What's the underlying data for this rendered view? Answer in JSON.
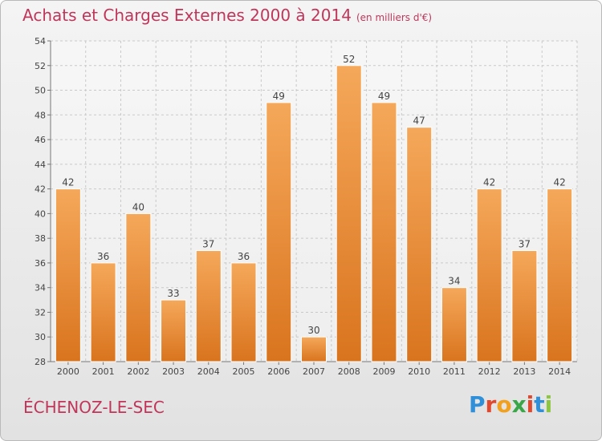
{
  "header": {
    "title": "Achats et Charges Externes 2000 à 2014",
    "unit": "(en milliers d'€)"
  },
  "footer": {
    "commune": "ÉCHENOZ-LE-SEC",
    "logo": "Proxiti"
  },
  "colors": {
    "accent_text": "#c0365a",
    "bar_light": "#f5a85a",
    "bar_dark": "#d9741e"
  },
  "chart_data": {
    "type": "bar",
    "categories": [
      "2000",
      "2001",
      "2002",
      "2003",
      "2004",
      "2005",
      "2006",
      "2007",
      "2008",
      "2009",
      "2010",
      "2011",
      "2012",
      "2013",
      "2014"
    ],
    "values": [
      42,
      36,
      40,
      33,
      37,
      36,
      49,
      30,
      52,
      49,
      47,
      34,
      42,
      37,
      42
    ],
    "ylim": [
      28,
      54
    ],
    "yticks": [
      28,
      30,
      32,
      34,
      36,
      38,
      40,
      42,
      44,
      46,
      48,
      50,
      52,
      54
    ],
    "grid": true,
    "data_labels": true
  }
}
